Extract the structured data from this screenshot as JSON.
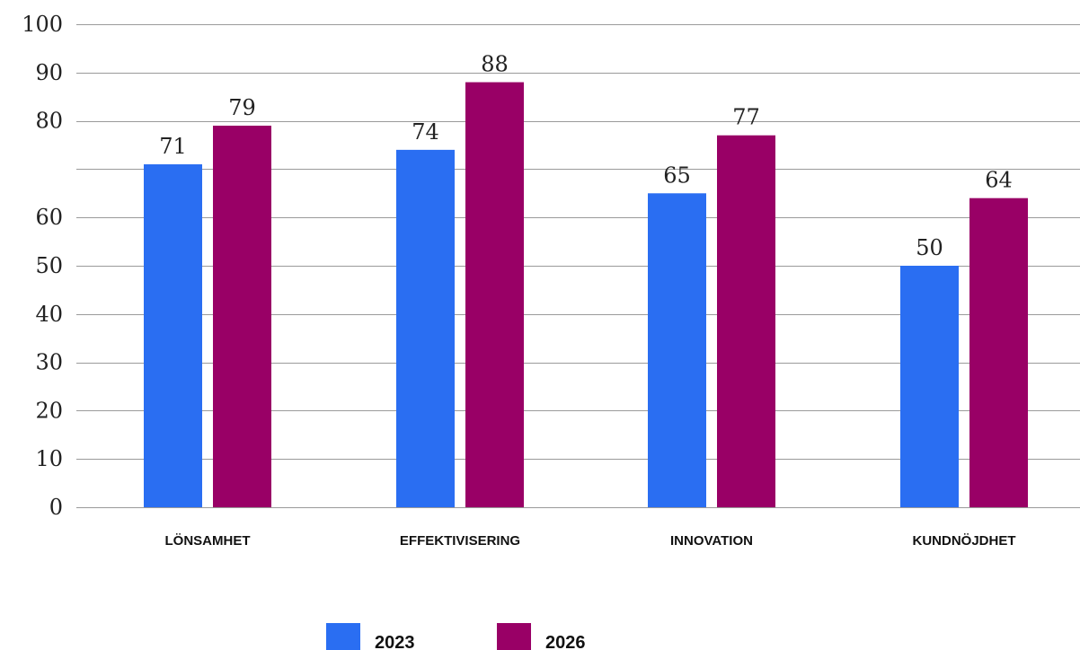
{
  "chart_data": {
    "type": "bar",
    "title": "",
    "xlabel": "",
    "ylabel": "",
    "categories": [
      "LÖNSAMHET",
      "EFFEKTIVISERING",
      "INNOVATION",
      "KUNDNÖJDHET"
    ],
    "series": [
      {
        "name": "2023",
        "color": "#2a6ef2",
        "values": [
          71,
          74,
          65,
          50
        ]
      },
      {
        "name": "2026",
        "color": "#990066",
        "values": [
          79,
          88,
          77,
          64
        ]
      }
    ],
    "ylim": [
      0,
      100
    ],
    "yticks": [
      0,
      10,
      20,
      30,
      40,
      50,
      60,
      80,
      90,
      100
    ],
    "gridlines": [
      0,
      10,
      20,
      30,
      40,
      50,
      60,
      70,
      80,
      90,
      100
    ],
    "grid": true,
    "legend_position": "bottom"
  }
}
